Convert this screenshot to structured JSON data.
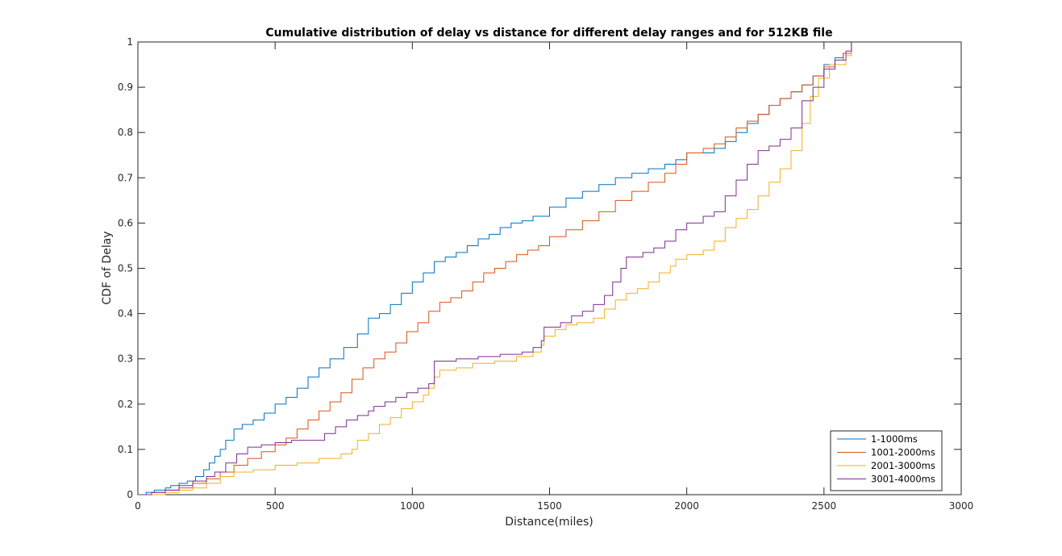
{
  "chart_data": {
    "type": "line",
    "title": "Cumulative distribution of delay vs distance for different delay ranges and for 512KB file",
    "xlabel": "Distance(miles)",
    "ylabel": "CDF of Delay",
    "xlim": [
      0,
      3000
    ],
    "ylim": [
      0,
      1
    ],
    "xticks": [
      0,
      500,
      1000,
      1500,
      2000,
      2500,
      3000
    ],
    "yticks": [
      0,
      0.1,
      0.2,
      0.3,
      0.4,
      0.5,
      0.6,
      0.7,
      0.8,
      0.9,
      1
    ],
    "xtick_labels": [
      "0",
      "500",
      "1000",
      "1500",
      "2000",
      "2500",
      "3000"
    ],
    "ytick_labels": [
      "0",
      "0.1",
      "0.2",
      "0.3",
      "0.4",
      "0.5",
      "0.6",
      "0.7",
      "0.8",
      "0.9",
      "1"
    ],
    "grid": false,
    "legend_position": "bottom-right",
    "step": true,
    "series": [
      {
        "name": "1-1000ms",
        "color": "#0072BD",
        "points": [
          [
            0,
            0
          ],
          [
            30,
            0.005
          ],
          [
            60,
            0.01
          ],
          [
            100,
            0.015
          ],
          [
            120,
            0.02
          ],
          [
            150,
            0.025
          ],
          [
            180,
            0.03
          ],
          [
            210,
            0.04
          ],
          [
            240,
            0.055
          ],
          [
            260,
            0.07
          ],
          [
            280,
            0.085
          ],
          [
            300,
            0.1
          ],
          [
            320,
            0.12
          ],
          [
            350,
            0.145
          ],
          [
            380,
            0.155
          ],
          [
            420,
            0.165
          ],
          [
            460,
            0.18
          ],
          [
            500,
            0.2
          ],
          [
            540,
            0.215
          ],
          [
            580,
            0.235
          ],
          [
            620,
            0.26
          ],
          [
            660,
            0.28
          ],
          [
            700,
            0.3
          ],
          [
            750,
            0.325
          ],
          [
            800,
            0.355
          ],
          [
            840,
            0.39
          ],
          [
            880,
            0.4
          ],
          [
            920,
            0.42
          ],
          [
            960,
            0.445
          ],
          [
            1000,
            0.47
          ],
          [
            1040,
            0.49
          ],
          [
            1080,
            0.515
          ],
          [
            1120,
            0.525
          ],
          [
            1160,
            0.535
          ],
          [
            1200,
            0.55
          ],
          [
            1240,
            0.565
          ],
          [
            1280,
            0.575
          ],
          [
            1320,
            0.59
          ],
          [
            1360,
            0.6
          ],
          [
            1400,
            0.605
          ],
          [
            1440,
            0.615
          ],
          [
            1500,
            0.635
          ],
          [
            1560,
            0.655
          ],
          [
            1620,
            0.67
          ],
          [
            1680,
            0.685
          ],
          [
            1740,
            0.7
          ],
          [
            1800,
            0.71
          ],
          [
            1860,
            0.72
          ],
          [
            1920,
            0.73
          ],
          [
            1960,
            0.74
          ],
          [
            2000,
            0.755
          ],
          [
            2060,
            0.755
          ],
          [
            2100,
            0.765
          ],
          [
            2140,
            0.78
          ],
          [
            2180,
            0.8
          ],
          [
            2220,
            0.82
          ],
          [
            2260,
            0.84
          ],
          [
            2300,
            0.86
          ],
          [
            2340,
            0.875
          ],
          [
            2380,
            0.89
          ],
          [
            2420,
            0.905
          ],
          [
            2460,
            0.925
          ],
          [
            2500,
            0.95
          ],
          [
            2540,
            0.965
          ],
          [
            2570,
            0.975
          ],
          [
            2600,
            1
          ]
        ]
      },
      {
        "name": "1001-2000ms",
        "color": "#D95319",
        "points": [
          [
            0,
            0
          ],
          [
            50,
            0.005
          ],
          [
            100,
            0.01
          ],
          [
            150,
            0.015
          ],
          [
            200,
            0.025
          ],
          [
            250,
            0.035
          ],
          [
            300,
            0.05
          ],
          [
            350,
            0.065
          ],
          [
            400,
            0.08
          ],
          [
            450,
            0.095
          ],
          [
            500,
            0.11
          ],
          [
            540,
            0.125
          ],
          [
            580,
            0.145
          ],
          [
            620,
            0.165
          ],
          [
            660,
            0.185
          ],
          [
            700,
            0.205
          ],
          [
            740,
            0.225
          ],
          [
            780,
            0.255
          ],
          [
            820,
            0.28
          ],
          [
            860,
            0.3
          ],
          [
            900,
            0.315
          ],
          [
            940,
            0.335
          ],
          [
            980,
            0.36
          ],
          [
            1020,
            0.38
          ],
          [
            1060,
            0.405
          ],
          [
            1100,
            0.425
          ],
          [
            1140,
            0.435
          ],
          [
            1180,
            0.45
          ],
          [
            1220,
            0.47
          ],
          [
            1260,
            0.49
          ],
          [
            1300,
            0.5
          ],
          [
            1340,
            0.515
          ],
          [
            1380,
            0.53
          ],
          [
            1420,
            0.54
          ],
          [
            1460,
            0.55
          ],
          [
            1500,
            0.57
          ],
          [
            1560,
            0.585
          ],
          [
            1620,
            0.605
          ],
          [
            1680,
            0.625
          ],
          [
            1740,
            0.65
          ],
          [
            1800,
            0.67
          ],
          [
            1860,
            0.69
          ],
          [
            1920,
            0.71
          ],
          [
            1960,
            0.73
          ],
          [
            2000,
            0.755
          ],
          [
            2060,
            0.765
          ],
          [
            2100,
            0.775
          ],
          [
            2140,
            0.79
          ],
          [
            2180,
            0.81
          ],
          [
            2220,
            0.825
          ],
          [
            2260,
            0.84
          ],
          [
            2300,
            0.86
          ],
          [
            2340,
            0.875
          ],
          [
            2380,
            0.89
          ],
          [
            2420,
            0.905
          ],
          [
            2460,
            0.925
          ],
          [
            2500,
            0.945
          ],
          [
            2540,
            0.96
          ],
          [
            2570,
            0.975
          ],
          [
            2600,
            1
          ]
        ]
      },
      {
        "name": "2001-3000ms",
        "color": "#EDB120",
        "points": [
          [
            0,
            0
          ],
          [
            100,
            0.005
          ],
          [
            150,
            0.01
          ],
          [
            200,
            0.015
          ],
          [
            250,
            0.025
          ],
          [
            300,
            0.04
          ],
          [
            350,
            0.05
          ],
          [
            420,
            0.055
          ],
          [
            500,
            0.065
          ],
          [
            580,
            0.07
          ],
          [
            660,
            0.08
          ],
          [
            740,
            0.09
          ],
          [
            780,
            0.1
          ],
          [
            800,
            0.12
          ],
          [
            840,
            0.135
          ],
          [
            880,
            0.155
          ],
          [
            920,
            0.17
          ],
          [
            960,
            0.19
          ],
          [
            1000,
            0.205
          ],
          [
            1040,
            0.22
          ],
          [
            1060,
            0.235
          ],
          [
            1080,
            0.26
          ],
          [
            1100,
            0.275
          ],
          [
            1160,
            0.28
          ],
          [
            1220,
            0.29
          ],
          [
            1300,
            0.295
          ],
          [
            1380,
            0.305
          ],
          [
            1440,
            0.315
          ],
          [
            1470,
            0.33
          ],
          [
            1480,
            0.35
          ],
          [
            1520,
            0.365
          ],
          [
            1560,
            0.375
          ],
          [
            1600,
            0.38
          ],
          [
            1660,
            0.39
          ],
          [
            1700,
            0.41
          ],
          [
            1740,
            0.43
          ],
          [
            1780,
            0.445
          ],
          [
            1820,
            0.455
          ],
          [
            1860,
            0.47
          ],
          [
            1900,
            0.49
          ],
          [
            1940,
            0.505
          ],
          [
            1960,
            0.52
          ],
          [
            2000,
            0.53
          ],
          [
            2060,
            0.54
          ],
          [
            2100,
            0.56
          ],
          [
            2140,
            0.59
          ],
          [
            2180,
            0.61
          ],
          [
            2220,
            0.63
          ],
          [
            2260,
            0.66
          ],
          [
            2300,
            0.69
          ],
          [
            2340,
            0.72
          ],
          [
            2380,
            0.76
          ],
          [
            2420,
            0.82
          ],
          [
            2450,
            0.88
          ],
          [
            2480,
            0.92
          ],
          [
            2520,
            0.95
          ],
          [
            2580,
            0.97
          ],
          [
            2600,
            1
          ]
        ]
      },
      {
        "name": "3001-4000ms",
        "color": "#7E2F8E",
        "points": [
          [
            0,
            0
          ],
          [
            50,
            0.005
          ],
          [
            100,
            0.01
          ],
          [
            150,
            0.02
          ],
          [
            200,
            0.03
          ],
          [
            250,
            0.04
          ],
          [
            280,
            0.05
          ],
          [
            320,
            0.07
          ],
          [
            360,
            0.09
          ],
          [
            400,
            0.105
          ],
          [
            450,
            0.11
          ],
          [
            500,
            0.115
          ],
          [
            560,
            0.12
          ],
          [
            620,
            0.12
          ],
          [
            680,
            0.135
          ],
          [
            720,
            0.15
          ],
          [
            760,
            0.165
          ],
          [
            800,
            0.175
          ],
          [
            840,
            0.185
          ],
          [
            860,
            0.195
          ],
          [
            900,
            0.205
          ],
          [
            940,
            0.215
          ],
          [
            980,
            0.225
          ],
          [
            1020,
            0.235
          ],
          [
            1060,
            0.245
          ],
          [
            1080,
            0.295
          ],
          [
            1160,
            0.3
          ],
          [
            1240,
            0.305
          ],
          [
            1320,
            0.31
          ],
          [
            1400,
            0.315
          ],
          [
            1440,
            0.325
          ],
          [
            1470,
            0.34
          ],
          [
            1480,
            0.37
          ],
          [
            1540,
            0.38
          ],
          [
            1580,
            0.395
          ],
          [
            1620,
            0.405
          ],
          [
            1660,
            0.42
          ],
          [
            1700,
            0.44
          ],
          [
            1730,
            0.47
          ],
          [
            1760,
            0.5
          ],
          [
            1780,
            0.525
          ],
          [
            1840,
            0.535
          ],
          [
            1880,
            0.545
          ],
          [
            1920,
            0.56
          ],
          [
            1960,
            0.585
          ],
          [
            2000,
            0.6
          ],
          [
            2060,
            0.615
          ],
          [
            2100,
            0.625
          ],
          [
            2140,
            0.66
          ],
          [
            2180,
            0.695
          ],
          [
            2220,
            0.73
          ],
          [
            2260,
            0.76
          ],
          [
            2300,
            0.77
          ],
          [
            2340,
            0.785
          ],
          [
            2380,
            0.81
          ],
          [
            2420,
            0.87
          ],
          [
            2460,
            0.9
          ],
          [
            2500,
            0.94
          ],
          [
            2540,
            0.96
          ],
          [
            2580,
            0.98
          ],
          [
            2600,
            1
          ]
        ]
      }
    ]
  }
}
